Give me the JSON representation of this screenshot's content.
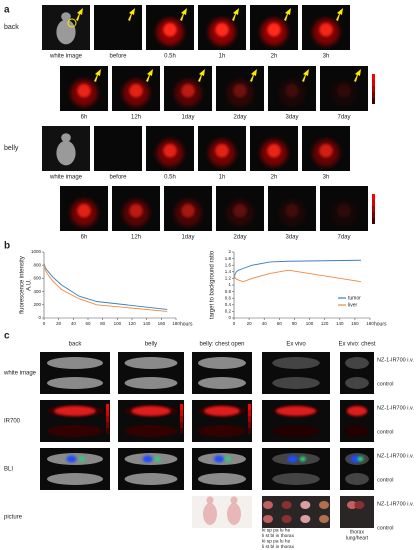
{
  "panel_a": {
    "label": "a",
    "rows": [
      {
        "name": "back",
        "times": [
          "white image",
          "before",
          "0.5h",
          "1h",
          "2h",
          "3h"
        ]
      },
      {
        "times": [
          "6h",
          "12h",
          "1day",
          "2day",
          "3day",
          "7day"
        ]
      },
      {
        "name": "belly",
        "times": [
          "white image",
          "before",
          "0.5h",
          "1h",
          "2h",
          "3h"
        ]
      },
      {
        "times": [
          "6h",
          "12h",
          "1day",
          "2day",
          "3day",
          "7day"
        ]
      }
    ]
  },
  "panel_b": {
    "label": "b"
  },
  "chart_data": [
    {
      "type": "line",
      "ylabel": [
        "fluorescence intensity",
        "A.U."
      ],
      "xlabel": "hours",
      "x": [
        0,
        0.5,
        1,
        2,
        3,
        6,
        12,
        24,
        48,
        72,
        168
      ],
      "series": [
        {
          "color": "#3a7fc4",
          "values": [
            800,
            820,
            790,
            760,
            740,
            700,
            620,
            500,
            330,
            250,
            130
          ]
        },
        {
          "color": "#f08a40",
          "values": [
            780,
            800,
            780,
            720,
            700,
            650,
            560,
            430,
            290,
            200,
            100
          ]
        }
      ],
      "xlim": [
        0,
        180
      ],
      "xticks": [
        0,
        20,
        40,
        60,
        80,
        100,
        120,
        140,
        160,
        180
      ],
      "ylim": [
        0,
        1000
      ],
      "yticks": [
        0,
        200,
        400,
        600,
        800,
        1000
      ]
    },
    {
      "type": "line",
      "ylabel": [
        "target to background ratio"
      ],
      "xlabel": "hours",
      "x": [
        0,
        0.5,
        1,
        2,
        3,
        6,
        12,
        24,
        48,
        72,
        168
      ],
      "series": [
        {
          "name": "tumor",
          "color": "#3a7fc4",
          "values": [
            1.2,
            1.25,
            1.3,
            1.35,
            1.4,
            1.45,
            1.5,
            1.6,
            1.7,
            1.72,
            1.75
          ]
        },
        {
          "name": "liver",
          "color": "#f08a40",
          "values": [
            1.3,
            1.28,
            1.25,
            1.2,
            1.18,
            1.15,
            1.1,
            1.2,
            1.35,
            1.45,
            1.1
          ]
        }
      ],
      "xlim": [
        0,
        180
      ],
      "xticks": [
        0,
        20,
        40,
        60,
        80,
        100,
        120,
        140,
        160,
        180
      ],
      "ylim": [
        0,
        2
      ],
      "yticks": [
        0,
        0.2,
        0.4,
        0.6,
        0.8,
        1,
        1.2,
        1.4,
        1.6,
        1.8,
        2
      ],
      "legend": "lower right"
    }
  ],
  "panel_c": {
    "label": "c",
    "columns": [
      "back",
      "belly",
      "belly: chest open",
      "Ex vivo",
      "Ex vivo: chest"
    ],
    "rows": [
      {
        "name": "white image",
        "right": [
          "NZ-1-IR700 i.v.",
          "control"
        ]
      },
      {
        "name": "IR700",
        "right": [
          "NZ-1-IR700 i.v.",
          "control"
        ]
      },
      {
        "name": "BLI",
        "right": [
          "NZ-1-IR700 i.v.",
          "control"
        ]
      },
      {
        "name": "picture",
        "right": [
          "NZ-1-IR700 i.v.",
          "control"
        ]
      }
    ],
    "organ_labels": [
      "ki  sp  pa        lu  he",
      "li   st   bl   in   thorax",
      "ki  sp  pa        lu  he",
      "li   st   bl   in   thorax"
    ],
    "chest_labels": [
      "thorax",
      "lung/heart"
    ]
  }
}
